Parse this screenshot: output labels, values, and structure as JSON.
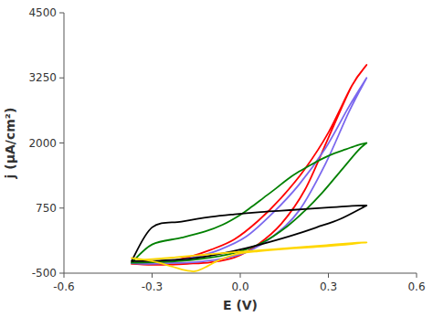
{
  "chart_data": {
    "type": "line",
    "xlabel": "E (V)",
    "ylabel": "j (μA/cm²)",
    "xlim": [
      -0.6,
      0.6
    ],
    "ylim": [
      -500,
      4500
    ],
    "xticks": [
      -0.6,
      -0.3,
      {
        "value": 0.0,
        "label": "0.0"
      },
      0.3,
      0.6
    ],
    "yticks": [
      -500,
      750,
      2000,
      3250,
      4500
    ],
    "grid": false,
    "series": [
      {
        "color": "#ff0000",
        "x": [
          -0.37,
          -0.34,
          -0.3,
          -0.25,
          -0.18,
          -0.1,
          -0.02,
          0.06,
          0.14,
          0.22,
          0.3,
          0.38,
          0.43,
          0.43,
          0.38,
          0.3,
          0.22,
          0.14,
          0.06,
          -0.02,
          -0.1,
          -0.18,
          -0.25,
          -0.3,
          -0.34,
          -0.37
        ],
        "values": [
          -320,
          -330,
          -340,
          -335,
          -320,
          -290,
          -200,
          50,
          450,
          1100,
          2100,
          3100,
          3500,
          3500,
          3100,
          2200,
          1500,
          950,
          500,
          150,
          -50,
          -200,
          -280,
          -310,
          -320,
          -320
        ]
      },
      {
        "color": "#7b68ee",
        "x": [
          -0.37,
          -0.32,
          -0.25,
          -0.16,
          -0.07,
          0.02,
          0.11,
          0.2,
          0.29,
          0.37,
          0.43,
          0.43,
          0.37,
          0.29,
          0.2,
          0.11,
          0.02,
          -0.07,
          -0.16,
          -0.25,
          -0.32,
          -0.37
        ],
        "values": [
          -310,
          -320,
          -310,
          -290,
          -230,
          -100,
          200,
          700,
          1600,
          2600,
          3250,
          3250,
          2700,
          1900,
          1200,
          650,
          200,
          -50,
          -200,
          -270,
          -300,
          -310
        ]
      },
      {
        "color": "#008000",
        "x": [
          -0.37,
          -0.3,
          -0.2,
          -0.1,
          0.0,
          0.08,
          0.16,
          0.22,
          0.28,
          0.34,
          0.4,
          0.43,
          0.43,
          0.4,
          0.36,
          0.32,
          0.28,
          0.24,
          0.2,
          0.16,
          0.12,
          0.08,
          0.04,
          0.0,
          -0.06,
          -0.12,
          -0.2,
          -0.3,
          -0.37
        ],
        "values": [
          -300,
          -290,
          -265,
          -200,
          -80,
          100,
          400,
          700,
          1050,
          1450,
          1850,
          2000,
          2000,
          1960,
          1880,
          1800,
          1700,
          1580,
          1450,
          1300,
          1120,
          950,
          780,
          620,
          430,
          300,
          180,
          50,
          -300
        ]
      },
      {
        "color": "#000000",
        "x": [
          -0.37,
          -0.3,
          -0.22,
          -0.14,
          -0.06,
          0.02,
          0.1,
          0.18,
          0.26,
          0.34,
          0.43,
          0.43,
          0.38,
          0.3,
          0.22,
          0.14,
          0.06,
          -0.02,
          -0.1,
          -0.2,
          -0.3,
          -0.37
        ],
        "values": [
          -270,
          -265,
          -245,
          -200,
          -120,
          -20,
          100,
          230,
          380,
          540,
          800,
          800,
          790,
          760,
          730,
          700,
          670,
          630,
          580,
          490,
          380,
          -270
        ]
      },
      {
        "color": "#ffd700",
        "x": [
          -0.37,
          -0.34,
          -0.3,
          -0.27,
          -0.24,
          -0.21,
          -0.19,
          -0.17,
          -0.15,
          -0.12,
          -0.08,
          -0.04,
          0.0,
          0.06,
          0.14,
          0.22,
          0.3,
          0.38,
          0.43,
          0.43,
          0.38,
          0.3,
          0.22,
          0.14,
          0.06,
          0.0,
          -0.06,
          -0.1,
          -0.14,
          -0.18,
          -0.22,
          -0.26,
          -0.3,
          -0.34,
          -0.37
        ],
        "values": [
          -210,
          -230,
          -270,
          -310,
          -360,
          -410,
          -440,
          -460,
          -460,
          -390,
          -270,
          -180,
          -120,
          -80,
          -40,
          -10,
          20,
          60,
          90,
          90,
          75,
          40,
          5,
          -30,
          -65,
          -90,
          -115,
          -135,
          -155,
          -175,
          -195,
          -215,
          -230,
          -240,
          -210
        ]
      }
    ]
  }
}
